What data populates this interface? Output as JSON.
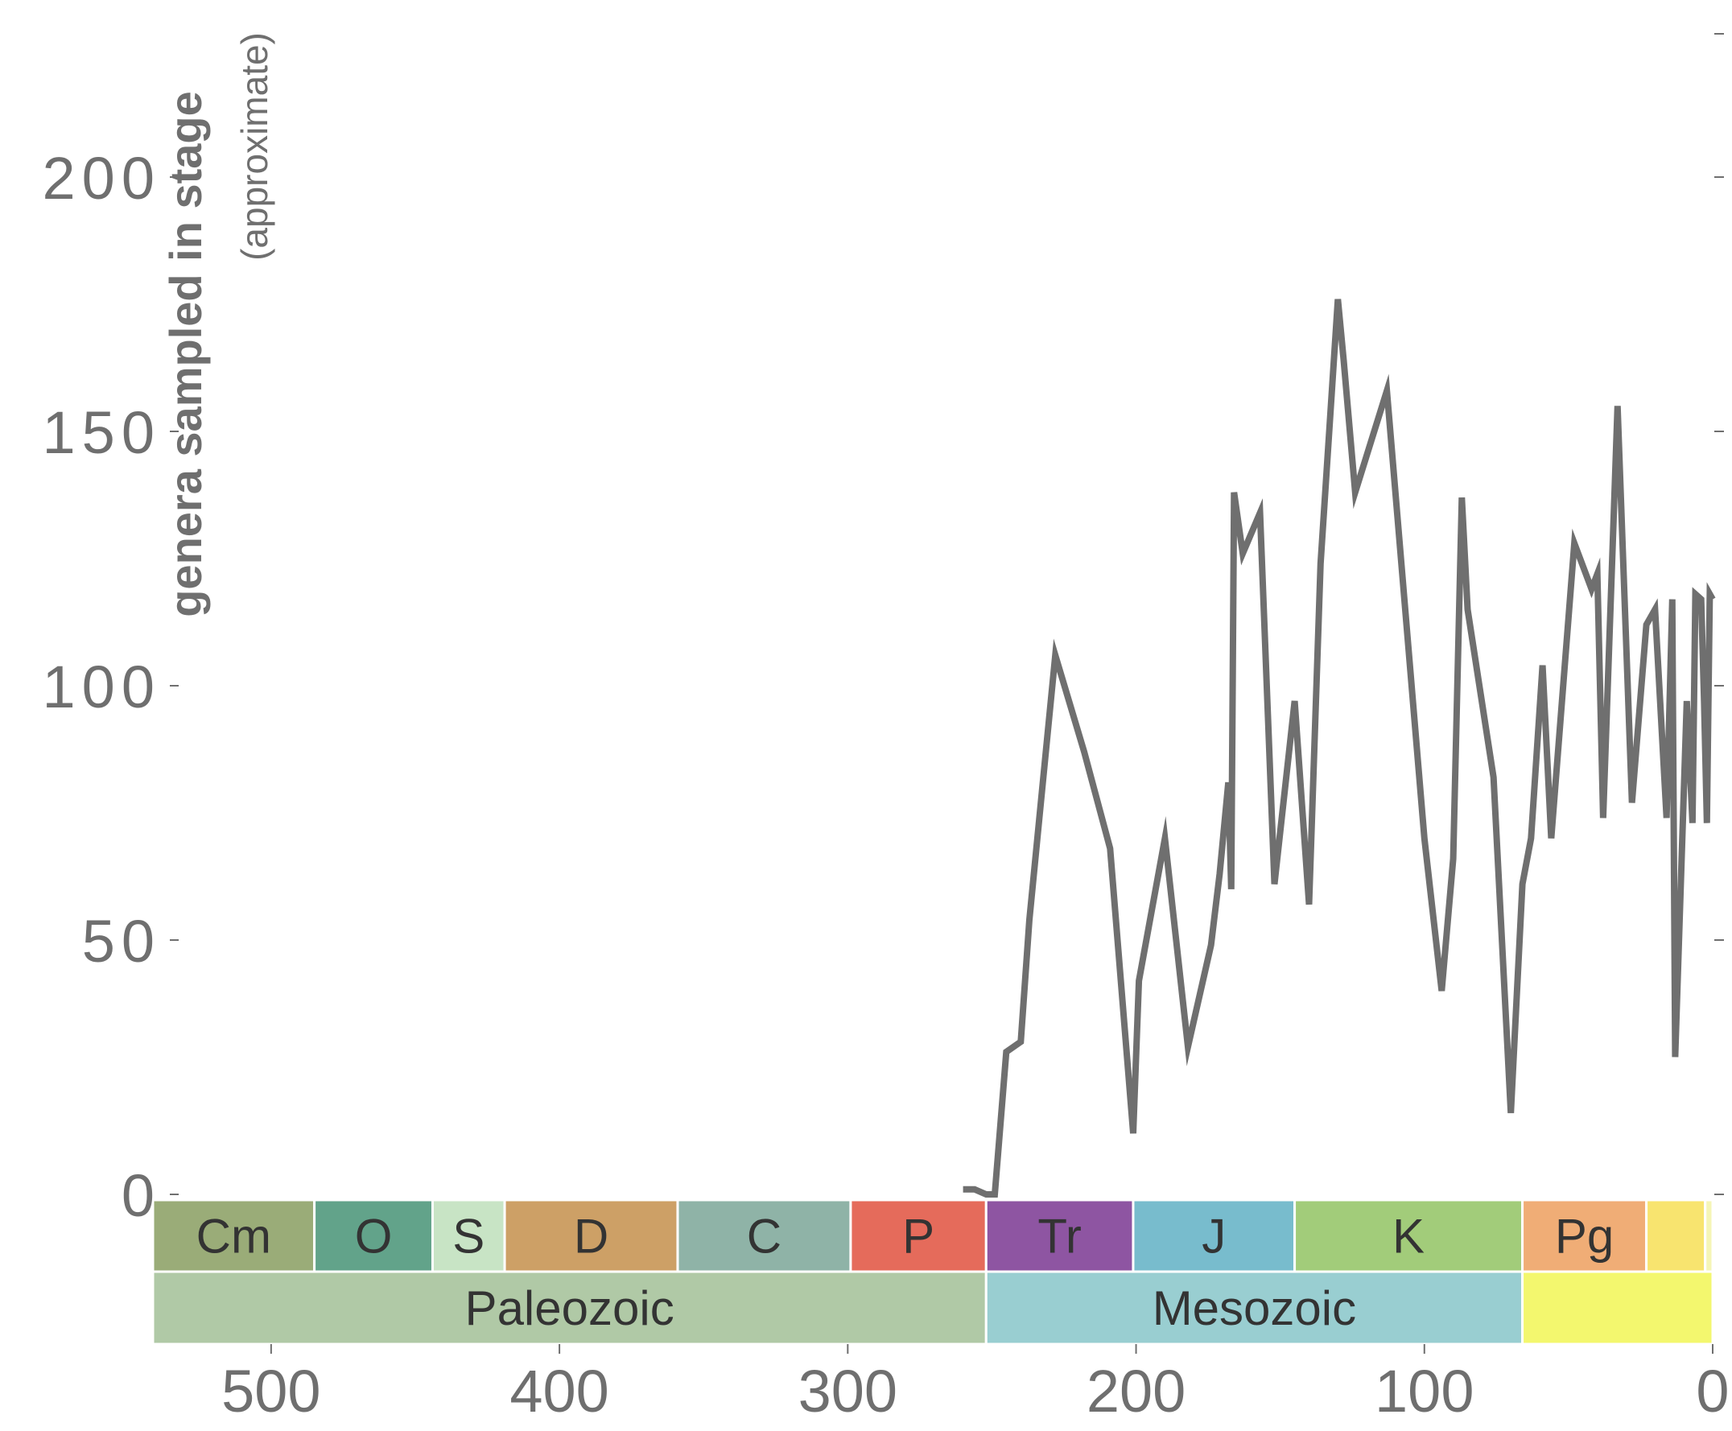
{
  "chart_data": {
    "type": "line",
    "title": "",
    "ylabel": "genera sampled in stage",
    "ylabel_note": "(approximate)",
    "xlabel": "",
    "xlim": [
      541,
      0
    ],
    "ylim": [
      0,
      230
    ],
    "y_ticks": [
      0,
      50,
      100,
      150,
      200
    ],
    "x_ticks": [
      500,
      400,
      300,
      200,
      100,
      0
    ],
    "grid": false,
    "line_color": "#6f6f6f",
    "series": [
      {
        "name": "",
        "x": [
          260,
          256,
          252,
          249,
          245,
          240,
          237,
          228,
          218,
          209,
          201,
          199,
          190,
          182,
          174,
          171,
          168,
          167,
          166,
          163,
          157,
          152,
          145,
          140,
          136,
          130,
          128,
          124,
          113,
          100,
          94,
          90,
          87,
          85,
          76,
          70,
          66,
          63,
          59,
          56,
          48,
          42,
          40,
          38,
          33,
          28,
          23,
          20,
          16,
          14,
          13,
          9,
          7,
          6,
          4,
          3,
          2,
          1,
          0
        ],
        "y": [
          1,
          1,
          0,
          0,
          28,
          30,
          54,
          106,
          87,
          68,
          12,
          42,
          70,
          29,
          49,
          63,
          81,
          60,
          138,
          126,
          134,
          61,
          97,
          57,
          124,
          176,
          164,
          138,
          158,
          70,
          40,
          66,
          137,
          115,
          82,
          16,
          61,
          70,
          104,
          70,
          128,
          119,
          122,
          74,
          155,
          77,
          112,
          115,
          74,
          117,
          27,
          97,
          73,
          118,
          117,
          97,
          73,
          118,
          117
        ]
      }
    ],
    "periods": [
      {
        "label": "Cm",
        "start": 541,
        "end": 485,
        "color": "#9aac78"
      },
      {
        "label": "O",
        "start": 485,
        "end": 444,
        "color": "#62a38a"
      },
      {
        "label": "S",
        "start": 444,
        "end": 419,
        "color": "#c8e4c5"
      },
      {
        "label": "D",
        "start": 419,
        "end": 359,
        "color": "#cda066"
      },
      {
        "label": "C",
        "start": 359,
        "end": 299,
        "color": "#8fb3a7"
      },
      {
        "label": "P",
        "start": 299,
        "end": 252,
        "color": "#e56b5b"
      },
      {
        "label": "Tr",
        "start": 252,
        "end": 201,
        "color": "#8e55a2"
      },
      {
        "label": "J",
        "start": 201,
        "end": 145,
        "color": "#78bccd"
      },
      {
        "label": "K",
        "start": 145,
        "end": 66,
        "color": "#a2cc7a"
      },
      {
        "label": "Pg",
        "start": 66,
        "end": 23,
        "color": "#f0ad76"
      },
      {
        "label": "",
        "start": 23,
        "end": 2.6,
        "color": "#f8e46f"
      },
      {
        "label": "",
        "start": 2.6,
        "end": 0,
        "color": "#f5f5b6"
      }
    ],
    "eras": [
      {
        "label": "Paleozoic",
        "start": 541,
        "end": 252,
        "color": "#b0c9a6"
      },
      {
        "label": "Mesozoic",
        "start": 252,
        "end": 66,
        "color": "#99ced1"
      },
      {
        "label": "",
        "start": 66,
        "end": 0,
        "color": "#f3f76e"
      }
    ]
  }
}
